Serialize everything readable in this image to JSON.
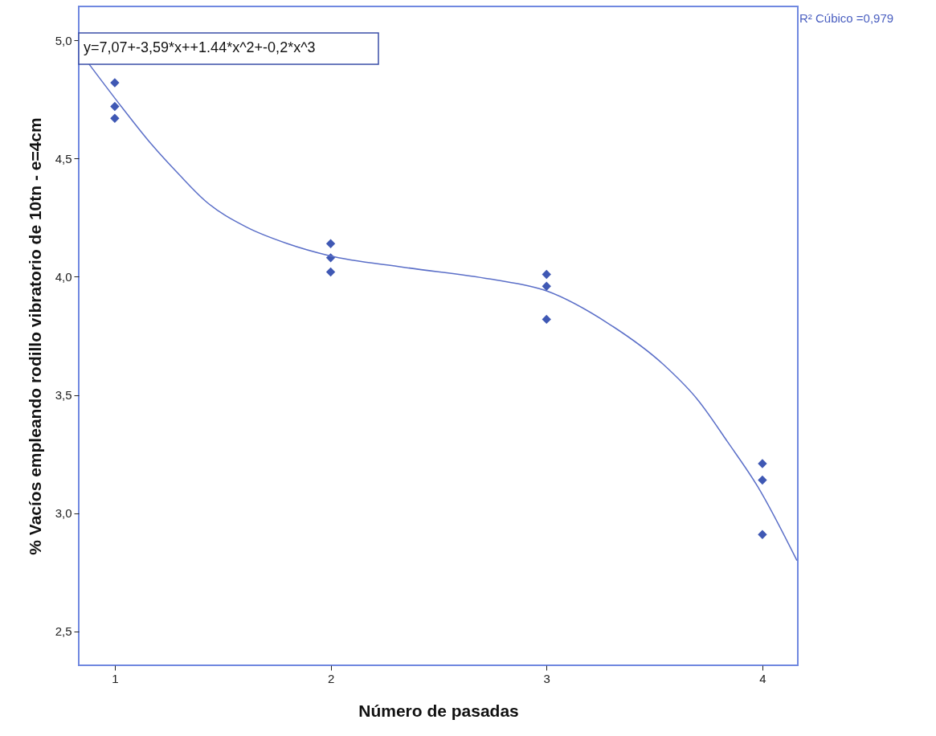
{
  "chart_data": {
    "type": "scatter",
    "xlabel": "Número de pasadas",
    "ylabel": "% Vacíos empleando rodillo vibratorio de 10tn - e=4cm",
    "xlim": [
      0.833,
      4.164
    ],
    "xticks": [
      1,
      2,
      3,
      4
    ],
    "ylim": [
      2.357,
      5.143
    ],
    "yticks": [
      {
        "value": 2.5,
        "label": "2,5"
      },
      {
        "value": 3.0,
        "label": "3,0"
      },
      {
        "value": 3.5,
        "label": "3,5"
      },
      {
        "value": 4.0,
        "label": "4,0"
      },
      {
        "value": 4.5,
        "label": "4,5"
      },
      {
        "value": 5.0,
        "label": "5,0"
      }
    ],
    "grid": false,
    "series": [
      {
        "marker": "diamond",
        "color": "#3f58b4",
        "x": [
          1,
          1,
          1,
          2,
          2,
          2,
          3,
          3,
          3,
          4,
          4,
          4
        ],
        "values": [
          4.82,
          4.72,
          4.67,
          4.14,
          4.08,
          4.02,
          4.01,
          3.96,
          3.82,
          3.21,
          3.14,
          2.91
        ]
      },
      {
        "type": "line",
        "color": "#5b6fc8",
        "x": [
          0.88,
          1.03,
          1.17,
          1.3,
          1.42,
          1.61,
          1.8,
          1.99,
          2.34,
          2.74,
          3.0,
          3.29,
          3.54,
          3.7,
          3.84,
          3.98,
          4.16
        ],
        "values": [
          4.9,
          4.72,
          4.56,
          4.43,
          4.32,
          4.21,
          4.14,
          4.09,
          4.04,
          3.99,
          3.94,
          3.8,
          3.63,
          3.48,
          3.3,
          3.11,
          2.8
        ]
      }
    ],
    "annotations": [
      "y=7,07+-3,59*x++1.44*x^2+-0,2*x^3",
      "R² Cúbico =0,979"
    ]
  }
}
